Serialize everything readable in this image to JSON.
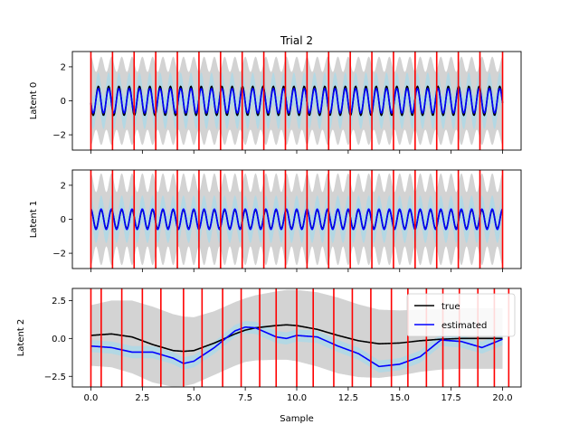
{
  "title": "Trial 2",
  "xlabel": "Sample",
  "xlim": [
    -0.9,
    20.9
  ],
  "xticks": [
    0.0,
    2.5,
    5.0,
    7.5,
    10.0,
    12.5,
    15.0,
    17.5,
    20.0
  ],
  "xtick_labels": [
    "0.0",
    "2.5",
    "5.0",
    "7.5",
    "10.0",
    "12.5",
    "15.0",
    "17.5",
    "20.0"
  ],
  "colors": {
    "true": "#000000",
    "estimated": "#0000ff",
    "band_outer": "#d3d3d3",
    "band_inner": "#add8e6",
    "events": "#ff0000"
  },
  "legend": {
    "entries": [
      {
        "label": "true",
        "color": "#000000"
      },
      {
        "label": "estimated",
        "color": "#0000ff"
      }
    ],
    "location": "upper right",
    "panel": 2
  },
  "chart_data": [
    {
      "type": "line",
      "ylabel": "Latent 0",
      "ylim": [
        -2.9,
        2.9
      ],
      "yticks": [
        2,
        0,
        -2
      ],
      "ytick_labels": [
        "2",
        "0",
        "−2"
      ],
      "x": [
        0.0,
        0.65,
        1.25,
        1.98,
        2.45,
        3.42,
        4.23,
        4.93,
        5.48,
        6.05,
        6.75,
        7.5,
        8.47,
        9.25,
        10.15,
        11.1,
        11.6,
        12.7,
        13.35,
        14.25,
        15.6,
        16.35,
        17.3,
        17.85,
        18.95,
        20.0
      ],
      "true_curve": {
        "kind": "sinusoid",
        "amplitude": 0.85,
        "cycles": 40,
        "phase": 3.3
      },
      "estimated_curve": {
        "kind": "sinusoid",
        "amplitude": 0.72,
        "cycles": 40,
        "phase": 3.3
      },
      "outer_band": {
        "kind": "oscillating",
        "max": 2.6,
        "min": 1.7,
        "cycles": 40
      },
      "inner_band_halfwidth": 0.95,
      "event_times": [
        0.0,
        1.05,
        2.1,
        3.15,
        4.2,
        5.25,
        6.3,
        7.35,
        8.4,
        9.45,
        10.5,
        11.55,
        12.6,
        13.65,
        14.7,
        15.75,
        16.8,
        17.85,
        18.9,
        20.0
      ]
    },
    {
      "type": "line",
      "ylabel": "Latent 1",
      "ylim": [
        -2.9,
        2.9
      ],
      "yticks": [
        2,
        0,
        -2
      ],
      "ytick_labels": [
        "2",
        "0",
        "−2"
      ],
      "true_curve": {
        "kind": "sinusoid",
        "amplitude": 0.55,
        "cycles": 40,
        "phase": 1.6
      },
      "estimated_curve": {
        "kind": "sinusoid",
        "amplitude": 0.6,
        "cycles": 40,
        "phase": 1.6
      },
      "outer_band": {
        "kind": "oscillating",
        "max": 2.7,
        "min": 1.6,
        "cycles": 40
      },
      "inner_band_halfwidth": 0.8,
      "event_times": [
        0.0,
        1.05,
        2.1,
        3.15,
        4.2,
        5.25,
        6.3,
        7.35,
        8.4,
        9.45,
        10.5,
        11.55,
        12.6,
        13.65,
        14.7,
        15.75,
        16.8,
        17.85,
        18.9,
        20.0
      ]
    },
    {
      "type": "line",
      "ylabel": "Latent 2",
      "ylim": [
        -3.2,
        3.3
      ],
      "yticks": [
        2.5,
        0.0,
        -2.5
      ],
      "ytick_labels": [
        "2.5",
        "0.0",
        "−2.5"
      ],
      "x": [
        0.0,
        1.0,
        2.0,
        3.0,
        4.0,
        4.5,
        5.0,
        6.0,
        7.0,
        7.5,
        8.0,
        9.0,
        9.5,
        10.0,
        11.0,
        12.0,
        13.0,
        14.0,
        15.0,
        16.0,
        17.0,
        18.0,
        19.0,
        20.0
      ],
      "true": [
        0.2,
        0.3,
        0.1,
        -0.4,
        -0.8,
        -0.85,
        -0.8,
        -0.3,
        0.3,
        0.55,
        0.7,
        0.85,
        0.9,
        0.85,
        0.6,
        0.2,
        -0.15,
        -0.35,
        -0.3,
        -0.15,
        -0.05,
        0.0,
        0.0,
        0.0
      ],
      "estimated": [
        -0.5,
        -0.6,
        -0.9,
        -0.9,
        -1.3,
        -1.65,
        -1.5,
        -0.6,
        0.5,
        0.75,
        0.7,
        0.1,
        0.0,
        0.2,
        0.1,
        -0.5,
        -1.0,
        -1.85,
        -1.7,
        -1.2,
        -0.1,
        -0.2,
        -0.6,
        -0.05
      ],
      "outer_band_halfwidth": [
        2.0,
        2.2,
        2.4,
        2.5,
        2.4,
        2.3,
        2.2,
        2.1,
        2.1,
        2.1,
        2.15,
        2.25,
        2.3,
        2.35,
        2.45,
        2.5,
        2.4,
        2.25,
        2.15,
        2.05,
        2.0,
        2.0,
        2.0,
        2.0
      ],
      "inner_band_halfwidth": [
        0.4,
        0.4,
        0.4,
        0.4,
        0.4,
        0.4,
        0.4,
        0.4,
        0.4,
        0.4,
        0.4,
        0.4,
        0.4,
        0.4,
        0.4,
        0.4,
        0.4,
        0.4,
        0.4,
        0.4,
        0.4,
        0.4,
        0.4,
        0.4
      ],
      "event_times": [
        0.0,
        0.5,
        1.5,
        2.5,
        3.4,
        4.5,
        5.4,
        6.4,
        7.3,
        8.2,
        9.0,
        10.0,
        10.8,
        11.8,
        12.7,
        13.6,
        14.6,
        15.4,
        16.3,
        17.1,
        17.9,
        18.8,
        19.6,
        20.3
      ]
    }
  ]
}
